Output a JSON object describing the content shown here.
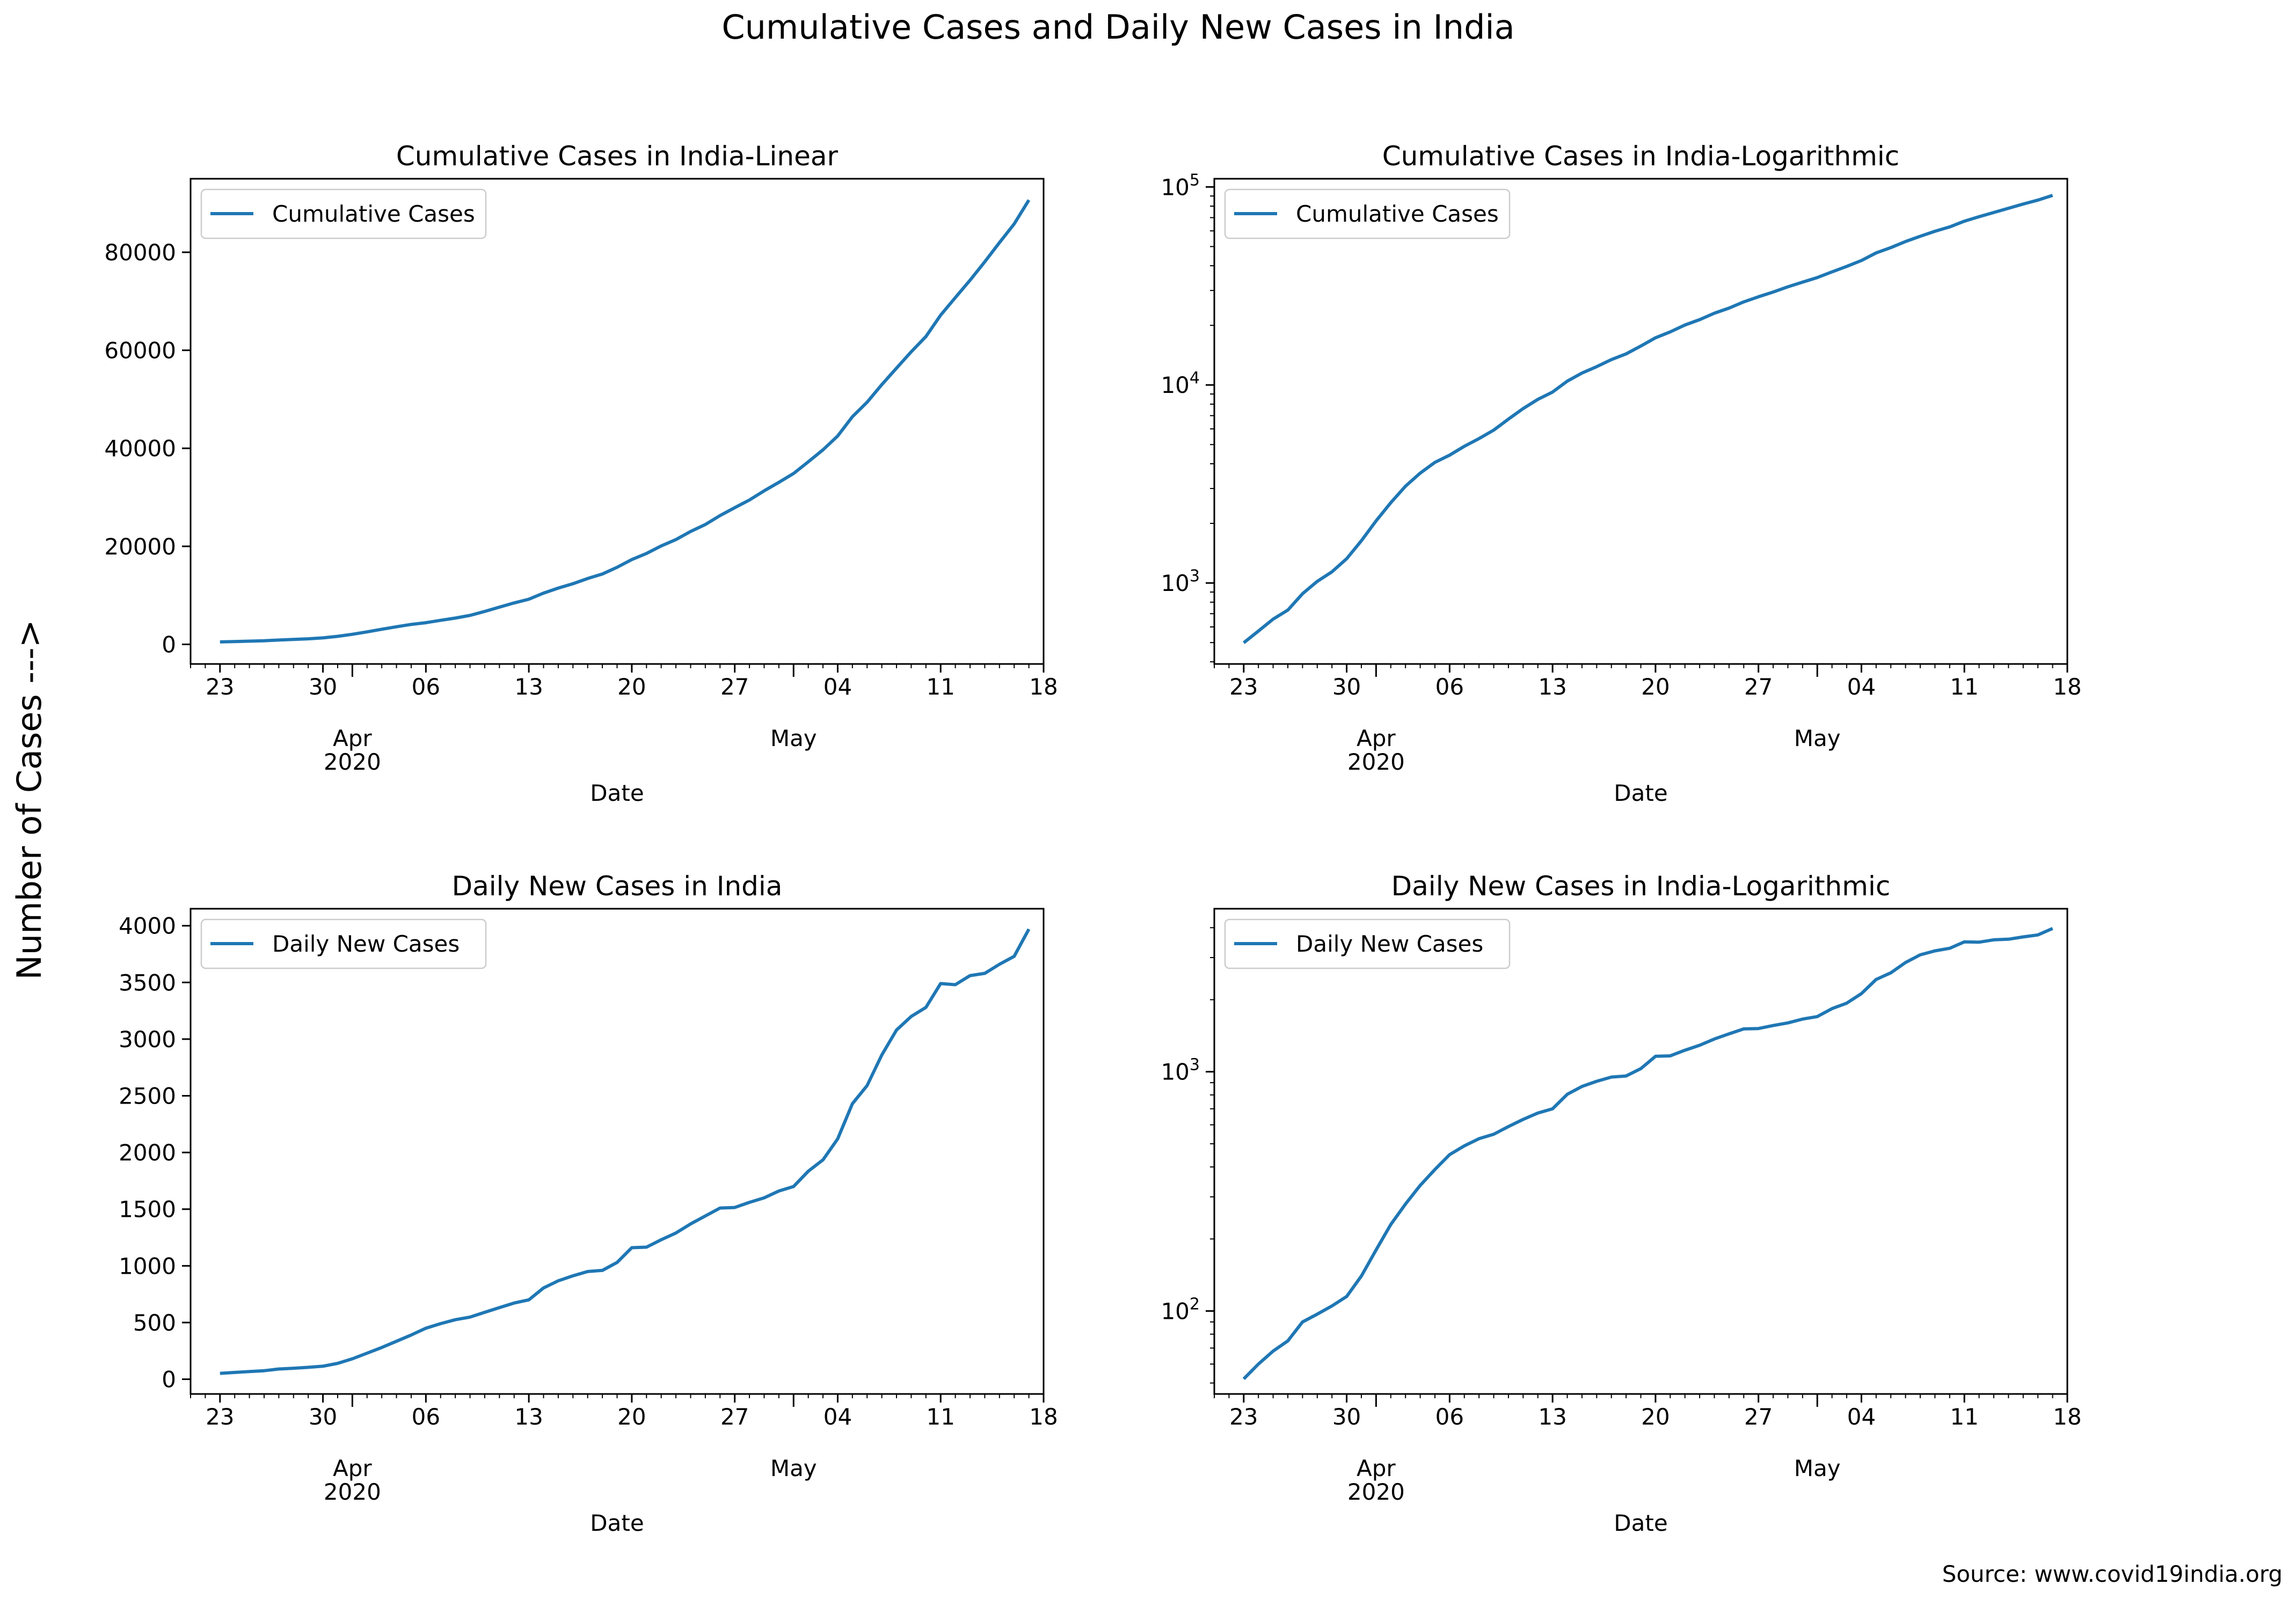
{
  "figure": {
    "suptitle": "Cumulative Cases and Daily New Cases in India",
    "ylabel": "Number of Cases --->",
    "source": "Source: www.covid19india.org"
  },
  "colors": {
    "line": "#1f77b4",
    "axes": "#000000",
    "legend_border": "#cccccc"
  },
  "x_axis": {
    "label": "Date",
    "tick_labels": [
      "23",
      "30",
      "06",
      "13",
      "20",
      "27",
      "04",
      "11",
      "18"
    ],
    "month_labels": [
      "Apr",
      "May"
    ],
    "year_label": "2020"
  },
  "chart_data": [
    {
      "type": "line",
      "title": "Cumulative Cases in India-Linear",
      "xlabel": "Date",
      "yscale": "linear",
      "ylim": [
        -4000,
        95000
      ],
      "yticks": [
        0,
        20000,
        40000,
        60000,
        80000
      ],
      "ytick_labels": [
        "0",
        "20000",
        "40000",
        "60000",
        "80000"
      ],
      "xlim": [
        "2020-03-21",
        "2020-05-18"
      ],
      "x_start": "2020-03-23",
      "legend": "upper left",
      "series": [
        {
          "name": "Cumulative Cases",
          "values": [
            499,
            572,
            657,
            730,
            883,
            1019,
            1139,
            1326,
            1635,
            2059,
            2545,
            3082,
            3588,
            4067,
            4421,
            4900,
            5360,
            5916,
            6725,
            7598,
            8453,
            9211,
            10453,
            11487,
            12371,
            13432,
            14353,
            15722,
            17305,
            18544,
            20080,
            21373,
            23039,
            24447,
            26283,
            27890,
            29451,
            31324,
            33062,
            34863,
            37257,
            39699,
            42505,
            46437,
            49400,
            52987,
            56351,
            59695,
            62808,
            67161,
            70756,
            74292,
            78055,
            81970,
            85784,
            90648
          ]
        }
      ]
    },
    {
      "type": "line",
      "title": "Cumulative Cases in India-Logarithmic",
      "xlabel": "Date",
      "yscale": "log",
      "ylim": [
        390,
        110000
      ],
      "yticks": [
        1000,
        10000,
        100000
      ],
      "ytick_base": "10",
      "ytick_exponents": [
        "3",
        "4",
        "5"
      ],
      "xlim": [
        "2020-03-21",
        "2020-05-18"
      ],
      "x_start": "2020-03-23",
      "legend": "upper left",
      "series": [
        {
          "name": "Cumulative Cases",
          "values": [
            499,
            572,
            657,
            730,
            883,
            1019,
            1139,
            1326,
            1635,
            2059,
            2545,
            3082,
            3588,
            4067,
            4421,
            4900,
            5360,
            5916,
            6725,
            7598,
            8453,
            9211,
            10453,
            11487,
            12371,
            13432,
            14353,
            15722,
            17305,
            18544,
            20080,
            21373,
            23039,
            24447,
            26283,
            27890,
            29451,
            31324,
            33062,
            34863,
            37257,
            39699,
            42505,
            46437,
            49400,
            52987,
            56351,
            59695,
            62808,
            67161,
            70756,
            74292,
            78055,
            81970,
            85784,
            90648
          ]
        }
      ]
    },
    {
      "type": "line",
      "title": "Daily New Cases in India",
      "xlabel": "Date",
      "yscale": "linear",
      "ylim": [
        -130,
        4150
      ],
      "yticks": [
        0,
        500,
        1000,
        1500,
        2000,
        2500,
        3000,
        3500,
        4000
      ],
      "ytick_labels": [
        "0",
        "500",
        "1000",
        "1500",
        "2000",
        "2500",
        "3000",
        "3500",
        "4000"
      ],
      "xlim": [
        "2020-03-21",
        "2020-05-18"
      ],
      "x_start": "2020-03-23",
      "legend": "upper left",
      "series": [
        {
          "name": "Daily New Cases",
          "values": [
            52,
            60,
            68,
            75,
            90,
            97,
            105,
            115,
            140,
            180,
            230,
            280,
            335,
            390,
            450,
            490,
            525,
            548,
            590,
            632,
            672,
            700,
            805,
            868,
            912,
            950,
            960,
            1030,
            1160,
            1165,
            1230,
            1290,
            1370,
            1440,
            1510,
            1515,
            1560,
            1600,
            1660,
            1700,
            1835,
            1935,
            2120,
            2430,
            2590,
            2860,
            3080,
            3200,
            3280,
            3490,
            3480,
            3560,
            3580,
            3660,
            3730,
            3970
          ]
        }
      ]
    },
    {
      "type": "line",
      "title": "Daily New Cases in India-Logarithmic",
      "xlabel": "Date",
      "yscale": "log",
      "ylim": [
        45,
        4800
      ],
      "yticks": [
        100,
        1000
      ],
      "ytick_base": "10",
      "ytick_exponents": [
        "2",
        "3"
      ],
      "xlim": [
        "2020-03-21",
        "2020-05-18"
      ],
      "x_start": "2020-03-23",
      "legend": "upper left",
      "series": [
        {
          "name": "Daily New Cases",
          "values": [
            52,
            60,
            68,
            75,
            90,
            97,
            105,
            115,
            140,
            180,
            230,
            280,
            335,
            390,
            450,
            490,
            525,
            548,
            590,
            632,
            672,
            700,
            805,
            868,
            912,
            950,
            960,
            1030,
            1160,
            1165,
            1230,
            1290,
            1370,
            1440,
            1510,
            1515,
            1560,
            1600,
            1660,
            1700,
            1835,
            1935,
            2120,
            2430,
            2590,
            2860,
            3080,
            3200,
            3280,
            3490,
            3480,
            3560,
            3580,
            3660,
            3730,
            3970
          ]
        }
      ]
    }
  ]
}
